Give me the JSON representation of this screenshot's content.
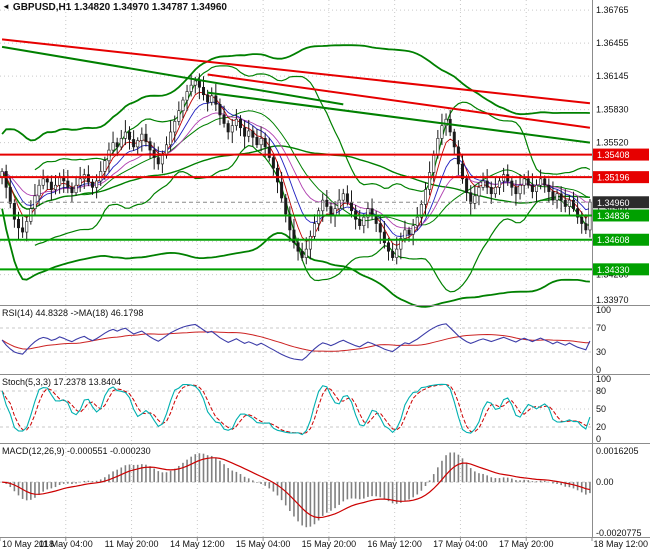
{
  "header": {
    "symbol_label": "GBPUSD,H1 1.34820 1.34970 1.34787 1.34960",
    "marker_icon": "◄"
  },
  "colors": {
    "bg": "#ffffff",
    "grid": "#c9c9c9",
    "separator": "#8c8c8c",
    "axis_text": "#111111",
    "candle": "#1a1a1a",
    "bull_fill": "#ffffff",
    "bear_fill": "#1a1a1a",
    "bollinger": "#008000",
    "ma_fast": "#c00000",
    "ma_mid": "#2020c0",
    "ma_slow": "#b040b0",
    "trend_red": "#e60000",
    "level_red": "#e60000",
    "level_green": "#00a000",
    "badge_red": "#e60000",
    "badge_green": "#00a000",
    "badge_current": "#2b2b2b",
    "current_line": "#888888",
    "rsi_line": "#3c3ca8",
    "rsi_ma": "#cc2222",
    "stoch_k": "#00b0b0",
    "stoch_d": "#cc0000",
    "macd_hist": "#808080",
    "macd_signal": "#cc0000"
  },
  "chart_data": {
    "type": "candlestick",
    "symbol": "GBPUSD",
    "timeframe": "H1",
    "ohlc": {
      "open": 1.3482,
      "high": 1.3497,
      "low": 1.34787,
      "close": 1.3496
    },
    "x_labels": [
      "10 May 2018",
      "11 May 04:00",
      "11 May 20:00",
      "14 May 12:00",
      "15 May 04:00",
      "15 May 20:00",
      "16 May 12:00",
      "17 May 04:00",
      "17 May 20:00",
      "18 May 12:00"
    ],
    "main": {
      "price_max": 1.3686,
      "price_min": 1.33995,
      "open": 1.352,
      "closes": [
        1.3525,
        1.351,
        1.3495,
        1.348,
        1.3472,
        1.3468,
        1.3478,
        1.349,
        1.3502,
        1.3512,
        1.3518,
        1.3515,
        1.3508,
        1.3512,
        1.352,
        1.3516,
        1.351,
        1.3505,
        1.3512,
        1.3518,
        1.3522,
        1.3515,
        1.351,
        1.3516,
        1.3525,
        1.3535,
        1.3545,
        1.3552,
        1.3548,
        1.3556,
        1.3562,
        1.3555,
        1.3548,
        1.3554,
        1.356,
        1.3553,
        1.3545,
        1.3538,
        1.3532,
        1.354,
        1.355,
        1.3562,
        1.3572,
        1.3582,
        1.3592,
        1.36,
        1.3606,
        1.361,
        1.3604,
        1.3597,
        1.359,
        1.3596,
        1.3588,
        1.3578,
        1.357,
        1.3562,
        1.3568,
        1.3574,
        1.3566,
        1.3558,
        1.3563,
        1.3557,
        1.355,
        1.3556,
        1.3548,
        1.3538,
        1.3528,
        1.3515,
        1.35,
        1.3485,
        1.347,
        1.3458,
        1.345,
        1.3444,
        1.3452,
        1.3464,
        1.3476,
        1.3488,
        1.3498,
        1.3492,
        1.3484,
        1.349,
        1.3498,
        1.3504,
        1.3496,
        1.3488,
        1.348,
        1.3474,
        1.3482,
        1.349,
        1.3484,
        1.3476,
        1.3468,
        1.3458,
        1.345,
        1.3444,
        1.3452,
        1.3462,
        1.347,
        1.3466,
        1.3474,
        1.3482,
        1.3494,
        1.3508,
        1.3524,
        1.354,
        1.3556,
        1.3568,
        1.3574,
        1.3562,
        1.3548,
        1.3532,
        1.3518,
        1.3505,
        1.3495,
        1.3502,
        1.351,
        1.3516,
        1.351,
        1.3504,
        1.351,
        1.3516,
        1.3522,
        1.3516,
        1.351,
        1.3504,
        1.3512,
        1.3518,
        1.3512,
        1.3506,
        1.3512,
        1.3518,
        1.3512,
        1.3506,
        1.3498,
        1.3504,
        1.3498,
        1.3492,
        1.3498,
        1.349,
        1.3482,
        1.3476,
        1.347,
        1.3496
      ],
      "y_axis_labels": [
        "1.36765",
        "1.36455",
        "1.36145",
        "1.35830",
        "1.35520",
        "1.35210",
        "1.34900",
        "1.34590",
        "1.34280",
        "1.33970"
      ],
      "horizontal_lines": [
        {
          "price": 1.35408,
          "text": "1.35408",
          "badge_color": "#e60000",
          "line_color": "#e60000",
          "style": "solid"
        },
        {
          "price": 1.35196,
          "text": "1.35196",
          "badge_color": "#e60000",
          "line_color": "#e60000",
          "style": "solid"
        },
        {
          "price": 1.3496,
          "text": "1.34960",
          "badge_color": "#2b2b2b",
          "line_color": "#888888",
          "style": "current"
        },
        {
          "price": 1.34836,
          "text": "1.34836",
          "badge_color": "#00a000",
          "line_color": "#00a000",
          "style": "solid"
        },
        {
          "price": 1.34608,
          "text": "1.34608",
          "badge_color": "#00a000",
          "line_color": "#00a000",
          "style": "solid"
        },
        {
          "price": 1.3433,
          "text": "1.34330",
          "badge_color": "#00a000",
          "line_color": "#00a000",
          "style": "solid"
        }
      ],
      "trendlines": [
        {
          "i1": 0,
          "p1": 1.3649,
          "i2": 143,
          "p2": 1.3589,
          "color": "#e60000",
          "width": 2
        },
        {
          "i1": 50,
          "p1": 1.3616,
          "i2": 143,
          "p2": 1.3566,
          "color": "#e60000",
          "width": 2
        },
        {
          "i1": 0,
          "p1": 1.3642,
          "i2": 83,
          "p2": 1.3588,
          "color": "#008000",
          "width": 2
        },
        {
          "i1": 50,
          "p1": 1.3599,
          "i2": 143,
          "p2": 1.3552,
          "color": "#008000",
          "width": 2
        }
      ]
    },
    "indicators": [
      {
        "id": "rsi",
        "label": "RSI(14) 44.8328 ->MA(18) 46.1798",
        "value": 44.8328,
        "ma_value": 46.1798,
        "range": [
          0,
          100
        ],
        "levels": [
          100,
          70,
          30,
          0
        ],
        "dashed_levels": [
          70,
          30
        ]
      },
      {
        "id": "stoch",
        "label": "Stoch(5,3,3) 17.2378 13.8404",
        "value_k": 17.2378,
        "value_d": 13.8404,
        "range": [
          0,
          100
        ],
        "levels": [
          100,
          80,
          50,
          20,
          0
        ],
        "dashed_levels": [
          80,
          20
        ],
        "mid_level": 50
      },
      {
        "id": "macd",
        "label": "MACD(12,26,9) -0.000551 -0.000230",
        "value": -0.000551,
        "signal": -0.00023,
        "axis_top_label": "0.0016205",
        "axis_zero_label": "0.00",
        "axis_bottom_label": "-0.0020775"
      }
    ]
  }
}
